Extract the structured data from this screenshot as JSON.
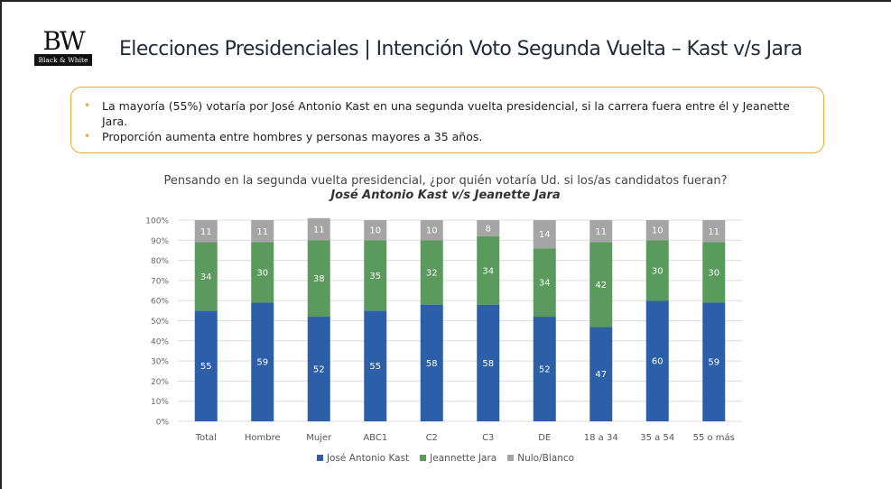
{
  "header": {
    "logo_text": "BW",
    "logo_subtext": "Black & White",
    "title": "Elecciones Presidenciales | Intención Voto Segunda Vuelta – Kast v/s Jara"
  },
  "summary": {
    "bullets": [
      "La mayoría (55%) votaría por José Antonio Kast en una segunda vuelta presidencial, si la carrera fuera entre él y Jeanette Jara.",
      "Proporción aumenta entre hombres y personas mayores a 35 años."
    ],
    "border_color": "#f0a830"
  },
  "chart_data": {
    "type": "bar",
    "stacked": true,
    "title": "Pensando en la segunda vuelta presidencial, ¿por quién votaría Ud. si los/as candidatos fueran?",
    "subtitle": "José Antonio Kast v/s Jeanette Jara",
    "xlabel": "",
    "ylabel": "",
    "ylim": [
      0,
      100
    ],
    "yticks": [
      "0%",
      "10%",
      "20%",
      "30%",
      "40%",
      "50%",
      "60%",
      "70%",
      "80%",
      "90%",
      "100%"
    ],
    "grid": true,
    "legend_position": "bottom",
    "categories": [
      "Total",
      "Hombre",
      "Mujer",
      "ABC1",
      "C2",
      "C3",
      "DE",
      "18 a 34",
      "35 a 54",
      "55 o más"
    ],
    "series": [
      {
        "name": "José Antonio Kast",
        "color": "#2c5fa8",
        "values": [
          55,
          59,
          52,
          55,
          58,
          58,
          52,
          47,
          60,
          59
        ]
      },
      {
        "name": "Jeannette Jara",
        "color": "#5a9a5c",
        "values": [
          34,
          30,
          38,
          35,
          32,
          34,
          34,
          42,
          30,
          30
        ]
      },
      {
        "name": "Nulo/Blanco",
        "color": "#a5a5a5",
        "values": [
          11,
          11,
          11,
          10,
          10,
          8,
          14,
          11,
          10,
          11
        ]
      }
    ]
  }
}
